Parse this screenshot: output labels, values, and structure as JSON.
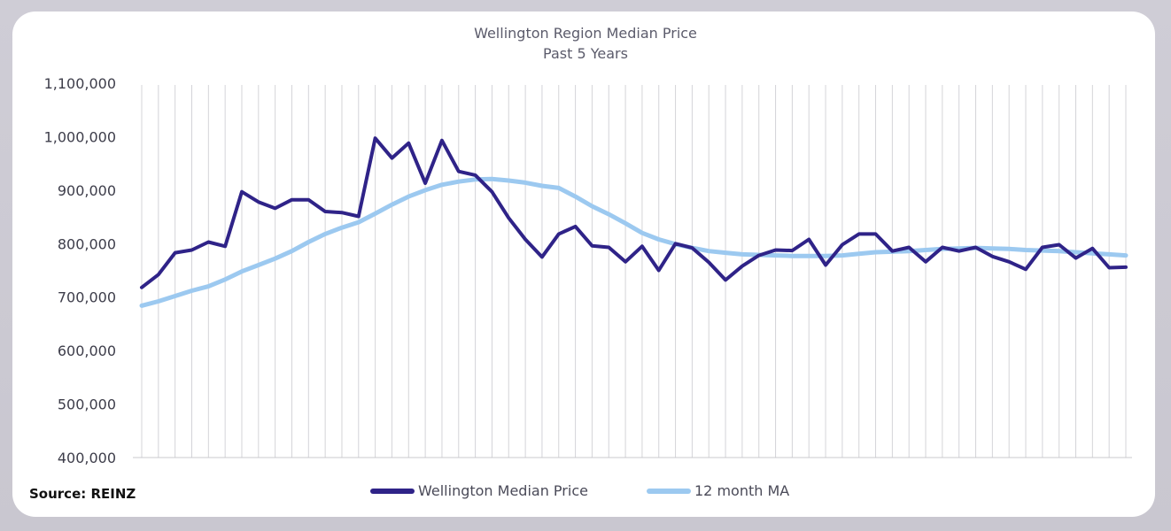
{
  "chart_data": {
    "type": "line",
    "title": "Wellington Region Median Price",
    "subtitle": "Past 5 Years",
    "xlabel": "",
    "ylabel": "",
    "ylim": [
      400000,
      1100000
    ],
    "yticks": [
      "400,000",
      "500,000",
      "600,000",
      "700,000",
      "800,000",
      "900,000",
      "1,000,000",
      "1,100,000"
    ],
    "ytick_values": [
      400000,
      500000,
      600000,
      700000,
      800000,
      900000,
      1000000,
      1100000
    ],
    "grid": "vertical",
    "legend_position": "bottom",
    "series": [
      {
        "name": "Wellington Median Price",
        "color": "#2f2388",
        "values": [
          718000,
          742000,
          783000,
          788000,
          803000,
          795000,
          897000,
          878000,
          866000,
          882000,
          882000,
          860000,
          858000,
          851000,
          997000,
          960000,
          988000,
          913000,
          993000,
          935000,
          928000,
          897000,
          848000,
          808000,
          775000,
          818000,
          832000,
          796000,
          793000,
          766000,
          795000,
          750000,
          800000,
          792000,
          765000,
          732000,
          758000,
          778000,
          788000,
          787000,
          808000,
          760000,
          798000,
          818000,
          818000,
          786000,
          793000,
          766000,
          793000,
          786000,
          793000,
          776000,
          766000,
          752000,
          793000,
          798000,
          773000,
          791000,
          755000,
          756000
        ]
      },
      {
        "name": "12 month MA",
        "color": "#9cc9f0",
        "values": [
          684000,
          692000,
          702000,
          712000,
          720000,
          733000,
          748000,
          760000,
          772000,
          786000,
          803000,
          818000,
          830000,
          840000,
          856000,
          873000,
          888000,
          900000,
          910000,
          916000,
          920000,
          921000,
          918000,
          914000,
          908000,
          904000,
          888000,
          870000,
          855000,
          838000,
          820000,
          808000,
          799000,
          792000,
          786000,
          783000,
          780000,
          779000,
          778000,
          777000,
          777000,
          777000,
          778000,
          781000,
          784000,
          785000,
          786000,
          788000,
          790000,
          791000,
          792000,
          791000,
          790000,
          788000,
          787000,
          786000,
          784000,
          782000,
          780000,
          778000
        ]
      }
    ]
  },
  "source": "Source: REINZ"
}
